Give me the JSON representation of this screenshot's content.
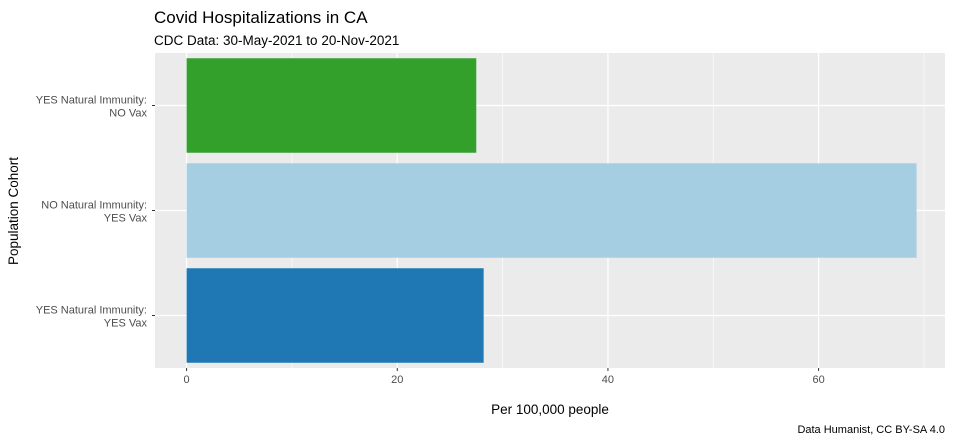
{
  "chart_data": {
    "type": "bar",
    "orientation": "horizontal",
    "title": "Covid Hospitalizations in CA",
    "subtitle": "CDC Data: 30-May-2021 to 20-Nov-2021",
    "xlabel": "Per 100,000 people",
    "ylabel": "Population Cohort",
    "caption": "Data Humanist, CC BY-SA 4.0",
    "xlim": [
      -3,
      72
    ],
    "x_ticks": [
      0,
      20,
      40,
      60
    ],
    "grid": true,
    "legend": "none",
    "categories": [
      [
        "YES Natural Immunity:",
        "NO Vax"
      ],
      [
        "NO Natural Immunity:",
        "YES Vax"
      ],
      [
        "YES Natural Immunity:",
        "YES Vax"
      ]
    ],
    "values": [
      27.5,
      69.3,
      28.2
    ],
    "colors": [
      "#33a02c",
      "#a6cee3",
      "#1f78b4"
    ]
  }
}
